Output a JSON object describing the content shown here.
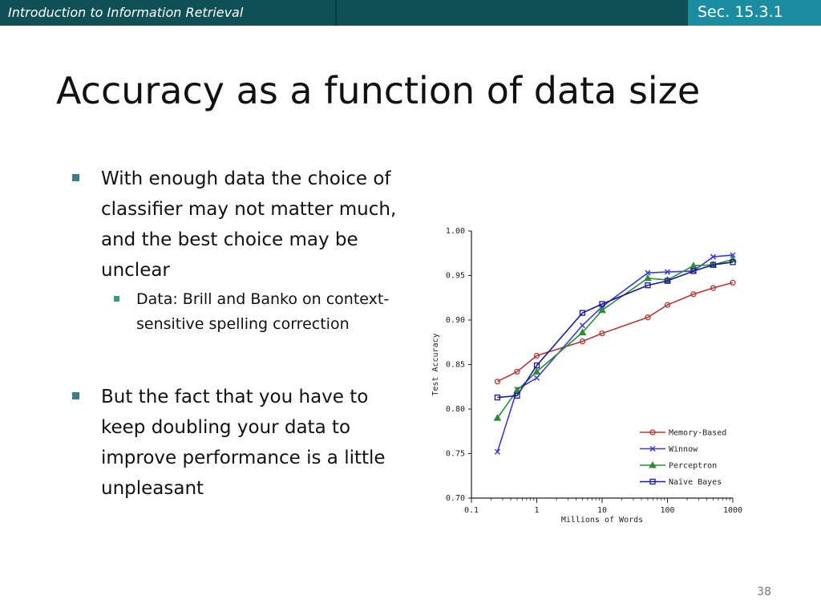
{
  "header": {
    "course_title": "Introduction to Information Retrieval",
    "section": "Sec. 15.3.1"
  },
  "slide": {
    "title": "Accuracy as a function of data size",
    "bullets": [
      {
        "text": "With enough data the choice of classifier may not matter much, and the best choice may be unclear",
        "sub": [
          "Data: Brill and Banko on context-sensitive spelling correction"
        ]
      },
      {
        "text": "But the fact that you have to keep doubling your data to improve performance is a little unpleasant",
        "sub": []
      }
    ],
    "page_number": "38"
  },
  "chart_data": {
    "type": "line",
    "xlabel": "Millions of Words",
    "ylabel": "Test Accuracy",
    "xscale": "log",
    "xlim": [
      0.1,
      1000
    ],
    "ylim": [
      0.7,
      1.0
    ],
    "xticks": [
      "0.1",
      "1",
      "10",
      "100",
      "1000"
    ],
    "xtick_values": [
      0.1,
      1,
      10,
      100,
      1000
    ],
    "yticks": [
      "0.70",
      "0.75",
      "0.80",
      "0.85",
      "0.90",
      "0.95",
      "1.00"
    ],
    "ytick_values": [
      0.7,
      0.75,
      0.8,
      0.85,
      0.9,
      0.95,
      1.0
    ],
    "legend_position": "bottom-right",
    "grid": false,
    "series": [
      {
        "name": "Memory-Based",
        "color": "#b03a3a",
        "marker": "circle",
        "x": [
          0.25,
          0.5,
          1,
          5,
          10,
          50,
          100,
          250,
          500,
          1000
        ],
        "y": [
          0.831,
          0.842,
          0.86,
          0.876,
          0.885,
          0.903,
          0.917,
          0.929,
          0.936,
          0.942
        ]
      },
      {
        "name": "Winnow",
        "color": "#3a3ad6",
        "marker": "x",
        "x": [
          0.25,
          0.5,
          1,
          5,
          10,
          50,
          100,
          250,
          500,
          1000
        ],
        "y": [
          0.752,
          0.822,
          0.835,
          0.894,
          0.915,
          0.953,
          0.954,
          0.955,
          0.971,
          0.973
        ]
      },
      {
        "name": "Perceptron",
        "color": "#2e8b3a",
        "marker": "triangle",
        "x": [
          0.25,
          0.5,
          1,
          5,
          10,
          50,
          100,
          250,
          500,
          1000
        ],
        "y": [
          0.79,
          0.821,
          0.842,
          0.886,
          0.911,
          0.947,
          0.945,
          0.961,
          0.962,
          0.968
        ]
      },
      {
        "name": "Naïve Bayes",
        "color": "#1a1a8c",
        "marker": "square",
        "x": [
          0.25,
          0.5,
          1,
          5,
          10,
          50,
          100,
          250,
          500,
          1000
        ],
        "y": [
          0.813,
          0.815,
          0.849,
          0.908,
          0.918,
          0.939,
          0.944,
          0.955,
          0.962,
          0.965
        ]
      }
    ]
  }
}
